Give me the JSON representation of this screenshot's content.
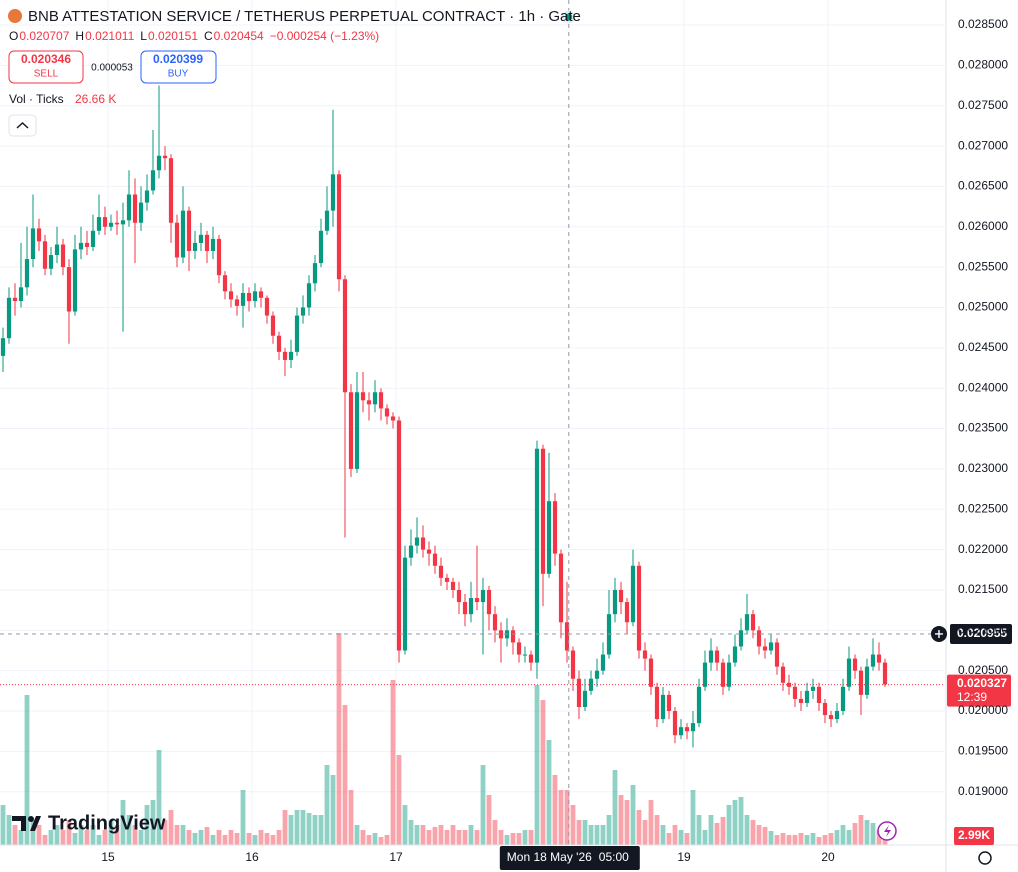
{
  "chart_data": {
    "type": "candlestick",
    "title": "BNB ATTESTATION SERVICE / TETHERUS PERPETUAL CONTRACT · 1h · Gate",
    "legend_values": [
      {
        "label": "O",
        "value": "0.020707"
      },
      {
        "label": "H",
        "value": "0.021011"
      },
      {
        "label": "L",
        "value": "0.020151"
      },
      {
        "label": "C",
        "value": "0.020454"
      }
    ],
    "change": "−0.000254 (−1.23%)",
    "sell": {
      "price": "0.020346",
      "label": "SELL"
    },
    "spread": "0.000053",
    "buy": {
      "price": "0.020399",
      "label": "BUY"
    },
    "volume_title": "Vol · Ticks",
    "volume_value": "26.66 K",
    "up_color": "#089981",
    "down_color": "#f23645",
    "ylim": [
      0.01834,
      0.02881
    ],
    "yticks": [
      {
        "value": 0.0285,
        "label": "0.028500"
      },
      {
        "value": 0.028,
        "label": "0.028000"
      },
      {
        "value": 0.0275,
        "label": "0.027500"
      },
      {
        "value": 0.027,
        "label": "0.027000"
      },
      {
        "value": 0.0265,
        "label": "0.026500"
      },
      {
        "value": 0.026,
        "label": "0.026000"
      },
      {
        "value": 0.0255,
        "label": "0.025500"
      },
      {
        "value": 0.025,
        "label": "0.025000"
      },
      {
        "value": 0.0245,
        "label": "0.024500"
      },
      {
        "value": 0.024,
        "label": "0.024000"
      },
      {
        "value": 0.0235,
        "label": "0.023500"
      },
      {
        "value": 0.023,
        "label": "0.023000"
      },
      {
        "value": 0.0225,
        "label": "0.022500"
      },
      {
        "value": 0.022,
        "label": "0.022000"
      },
      {
        "value": 0.0215,
        "label": "0.021500"
      },
      {
        "value": 0.021,
        "label": "0.021000"
      },
      {
        "value": 0.0205,
        "label": "0.020500"
      },
      {
        "value": 0.02,
        "label": "0.020000"
      },
      {
        "value": 0.0195,
        "label": "0.019500"
      },
      {
        "value": 0.019,
        "label": "0.019000"
      }
    ],
    "xlim": [
      -0.5,
      157
    ],
    "xticks": [
      {
        "value": 17.5,
        "label": "15"
      },
      {
        "value": 41.5,
        "label": "16"
      },
      {
        "value": 65.5,
        "label": "17"
      },
      {
        "value": 113.5,
        "label": "19"
      },
      {
        "value": 137.5,
        "label": "20"
      }
    ],
    "grid": true,
    "ohlc": [
      [
        0.0244,
        0.02475,
        0.0242,
        0.02462
      ],
      [
        0.02462,
        0.02525,
        0.02455,
        0.02512
      ],
      [
        0.02512,
        0.0253,
        0.0249,
        0.02508
      ],
      [
        0.02508,
        0.0258,
        0.025,
        0.02525
      ],
      [
        0.02525,
        0.026,
        0.02515,
        0.0256
      ],
      [
        0.0256,
        0.0264,
        0.0255,
        0.02598
      ],
      [
        0.02598,
        0.0261,
        0.0257,
        0.02582
      ],
      [
        0.02582,
        0.0259,
        0.0254,
        0.02548
      ],
      [
        0.02548,
        0.02575,
        0.0254,
        0.02565
      ],
      [
        0.02565,
        0.026,
        0.02555,
        0.02578
      ],
      [
        0.02578,
        0.02585,
        0.0254,
        0.0255
      ],
      [
        0.0255,
        0.0256,
        0.02455,
        0.02495
      ],
      [
        0.02495,
        0.0259,
        0.0249,
        0.02572
      ],
      [
        0.02572,
        0.026,
        0.0256,
        0.0258
      ],
      [
        0.0258,
        0.02595,
        0.02565,
        0.02575
      ],
      [
        0.02575,
        0.02615,
        0.0257,
        0.02595
      ],
      [
        0.02595,
        0.0264,
        0.0259,
        0.02612
      ],
      [
        0.02612,
        0.02625,
        0.0259,
        0.026
      ],
      [
        0.026,
        0.02615,
        0.02595,
        0.02605
      ],
      [
        0.02605,
        0.0262,
        0.0259,
        0.02603
      ],
      [
        0.02603,
        0.0263,
        0.0247,
        0.02608
      ],
      [
        0.02608,
        0.0267,
        0.026,
        0.0264
      ],
      [
        0.0264,
        0.0266,
        0.02555,
        0.02605
      ],
      [
        0.02605,
        0.0265,
        0.02595,
        0.0263
      ],
      [
        0.0263,
        0.02665,
        0.0262,
        0.02645
      ],
      [
        0.02645,
        0.0272,
        0.0264,
        0.0267
      ],
      [
        0.0267,
        0.02775,
        0.0266,
        0.02688
      ],
      [
        0.02688,
        0.027,
        0.0267,
        0.02685
      ],
      [
        0.02685,
        0.0269,
        0.0258,
        0.02605
      ],
      [
        0.02605,
        0.02615,
        0.0255,
        0.02562
      ],
      [
        0.02562,
        0.0265,
        0.02555,
        0.0262
      ],
      [
        0.0262,
        0.02625,
        0.02545,
        0.0257
      ],
      [
        0.0257,
        0.02595,
        0.0256,
        0.0258
      ],
      [
        0.0258,
        0.02605,
        0.0257,
        0.0259
      ],
      [
        0.0259,
        0.02595,
        0.02555,
        0.0257
      ],
      [
        0.0257,
        0.026,
        0.0256,
        0.02585
      ],
      [
        0.02585,
        0.0259,
        0.0253,
        0.0254
      ],
      [
        0.0254,
        0.02545,
        0.0251,
        0.0252
      ],
      [
        0.0252,
        0.0253,
        0.025,
        0.0251
      ],
      [
        0.0251,
        0.02515,
        0.0249,
        0.02502
      ],
      [
        0.02502,
        0.0253,
        0.02475,
        0.02518
      ],
      [
        0.02518,
        0.02525,
        0.02495,
        0.02508
      ],
      [
        0.02508,
        0.0253,
        0.025,
        0.0252
      ],
      [
        0.0252,
        0.02525,
        0.025,
        0.02512
      ],
      [
        0.02512,
        0.02515,
        0.0248,
        0.0249
      ],
      [
        0.0249,
        0.02495,
        0.02455,
        0.02465
      ],
      [
        0.02465,
        0.0247,
        0.02435,
        0.02445
      ],
      [
        0.02445,
        0.0245,
        0.02415,
        0.02435
      ],
      [
        0.02435,
        0.0246,
        0.02425,
        0.02445
      ],
      [
        0.02445,
        0.025,
        0.0244,
        0.0249
      ],
      [
        0.0249,
        0.02515,
        0.0248,
        0.025
      ],
      [
        0.025,
        0.0254,
        0.0249,
        0.0253
      ],
      [
        0.0253,
        0.02565,
        0.0252,
        0.02555
      ],
      [
        0.02555,
        0.0261,
        0.0255,
        0.02595
      ],
      [
        0.02595,
        0.0265,
        0.0259,
        0.0262
      ],
      [
        0.0262,
        0.02745,
        0.026,
        0.02665
      ],
      [
        0.02665,
        0.0267,
        0.0252,
        0.02535
      ],
      [
        0.02535,
        0.0254,
        0.02215,
        0.02395
      ],
      [
        0.02395,
        0.02405,
        0.0229,
        0.023
      ],
      [
        0.023,
        0.0242,
        0.02295,
        0.02395
      ],
      [
        0.02395,
        0.0242,
        0.0237,
        0.02385
      ],
      [
        0.02385,
        0.02395,
        0.0236,
        0.0238
      ],
      [
        0.0238,
        0.0241,
        0.0237,
        0.02395
      ],
      [
        0.02395,
        0.024,
        0.0236,
        0.02375
      ],
      [
        0.02375,
        0.0238,
        0.02355,
        0.02365
      ],
      [
        0.02365,
        0.0237,
        0.0235,
        0.0236
      ],
      [
        0.0236,
        0.02365,
        0.0206,
        0.02075
      ],
      [
        0.02075,
        0.02205,
        0.0207,
        0.0219
      ],
      [
        0.0219,
        0.02225,
        0.0218,
        0.02205
      ],
      [
        0.02205,
        0.0224,
        0.02195,
        0.02215
      ],
      [
        0.02215,
        0.0223,
        0.0219,
        0.022
      ],
      [
        0.022,
        0.0221,
        0.0218,
        0.02195
      ],
      [
        0.02195,
        0.02205,
        0.0217,
        0.0218
      ],
      [
        0.0218,
        0.0219,
        0.02155,
        0.02165
      ],
      [
        0.02165,
        0.0217,
        0.0215,
        0.0216
      ],
      [
        0.0216,
        0.02165,
        0.0214,
        0.0215
      ],
      [
        0.0215,
        0.0216,
        0.0212,
        0.02135
      ],
      [
        0.02135,
        0.02145,
        0.02105,
        0.0212
      ],
      [
        0.0212,
        0.0216,
        0.0211,
        0.0214
      ],
      [
        0.0214,
        0.02205,
        0.02125,
        0.02135
      ],
      [
        0.02135,
        0.02165,
        0.0207,
        0.0215
      ],
      [
        0.0215,
        0.02155,
        0.021,
        0.0212
      ],
      [
        0.0212,
        0.0213,
        0.02085,
        0.021
      ],
      [
        0.021,
        0.0211,
        0.0206,
        0.0209
      ],
      [
        0.0209,
        0.02115,
        0.0208,
        0.021
      ],
      [
        0.021,
        0.02105,
        0.0207,
        0.02085
      ],
      [
        0.02085,
        0.0209,
        0.0206,
        0.0207
      ],
      [
        0.0207,
        0.0208,
        0.0206,
        0.0207
      ],
      [
        0.0207,
        0.02075,
        0.0205,
        0.0206
      ],
      [
        0.0206,
        0.02335,
        0.0204,
        0.02325
      ],
      [
        0.02325,
        0.0233,
        0.0213,
        0.0217
      ],
      [
        0.0217,
        0.0232,
        0.02165,
        0.0226
      ],
      [
        0.0226,
        0.0227,
        0.0218,
        0.02195
      ],
      [
        0.02195,
        0.022,
        0.0209,
        0.0211
      ],
      [
        0.0211,
        0.0216,
        0.0206,
        0.02075
      ],
      [
        0.02075,
        0.0208,
        0.02025,
        0.0204
      ],
      [
        0.0204,
        0.0205,
        0.0199,
        0.02005
      ],
      [
        0.02005,
        0.0204,
        0.02,
        0.02025
      ],
      [
        0.02025,
        0.0205,
        0.0202,
        0.0204
      ],
      [
        0.0204,
        0.02065,
        0.0203,
        0.0205
      ],
      [
        0.0205,
        0.02085,
        0.02045,
        0.0207
      ],
      [
        0.0207,
        0.0215,
        0.02065,
        0.0212
      ],
      [
        0.0212,
        0.02165,
        0.0211,
        0.0215
      ],
      [
        0.0215,
        0.0216,
        0.0212,
        0.02135
      ],
      [
        0.02135,
        0.0214,
        0.02095,
        0.0211
      ],
      [
        0.0211,
        0.022,
        0.02105,
        0.0218
      ],
      [
        0.0218,
        0.02185,
        0.02065,
        0.02075
      ],
      [
        0.02075,
        0.02085,
        0.0205,
        0.02065
      ],
      [
        0.02065,
        0.0207,
        0.0202,
        0.0203
      ],
      [
        0.0203,
        0.02035,
        0.0198,
        0.0199
      ],
      [
        0.0199,
        0.0203,
        0.01985,
        0.0202
      ],
      [
        0.0202,
        0.02025,
        0.0199,
        0.02
      ],
      [
        0.02,
        0.02005,
        0.0196,
        0.0197
      ],
      [
        0.0197,
        0.0199,
        0.01965,
        0.0198
      ],
      [
        0.0198,
        0.01985,
        0.01965,
        0.01975
      ],
      [
        0.01975,
        0.02,
        0.01955,
        0.01985
      ],
      [
        0.01985,
        0.0204,
        0.0198,
        0.0203
      ],
      [
        0.0203,
        0.02075,
        0.02025,
        0.0206
      ],
      [
        0.0206,
        0.0209,
        0.0205,
        0.02075
      ],
      [
        0.02075,
        0.0208,
        0.0205,
        0.0206
      ],
      [
        0.0206,
        0.02065,
        0.0202,
        0.0203
      ],
      [
        0.0203,
        0.0207,
        0.02025,
        0.0206
      ],
      [
        0.0206,
        0.02095,
        0.02055,
        0.0208
      ],
      [
        0.0208,
        0.02115,
        0.02075,
        0.021
      ],
      [
        0.021,
        0.02145,
        0.02095,
        0.0212
      ],
      [
        0.0212,
        0.02125,
        0.0209,
        0.021
      ],
      [
        0.021,
        0.02105,
        0.0207,
        0.0208
      ],
      [
        0.0208,
        0.0209,
        0.02065,
        0.02075
      ],
      [
        0.02075,
        0.02095,
        0.0207,
        0.02085
      ],
      [
        0.02085,
        0.0209,
        0.02045,
        0.02055
      ],
      [
        0.02055,
        0.0206,
        0.02025,
        0.02035
      ],
      [
        0.02035,
        0.02045,
        0.0202,
        0.0203
      ],
      [
        0.0203,
        0.02035,
        0.02005,
        0.02015
      ],
      [
        0.02015,
        0.02025,
        0.02,
        0.0201
      ],
      [
        0.0201,
        0.02035,
        0.02005,
        0.02025
      ],
      [
        0.02025,
        0.0204,
        0.02015,
        0.0203
      ],
      [
        0.0203,
        0.02035,
        0.02,
        0.0201
      ],
      [
        0.0201,
        0.02015,
        0.01985,
        0.01995
      ],
      [
        0.01995,
        0.02,
        0.0198,
        0.0199
      ],
      [
        0.0199,
        0.0201,
        0.01985,
        0.02
      ],
      [
        0.02,
        0.0204,
        0.01995,
        0.0203
      ],
      [
        0.0203,
        0.0208,
        0.02025,
        0.02065
      ],
      [
        0.02065,
        0.0207,
        0.0204,
        0.0205
      ],
      [
        0.0205,
        0.02055,
        0.01995,
        0.0202
      ],
      [
        0.0202,
        0.02065,
        0.02015,
        0.02055
      ],
      [
        0.02055,
        0.0209,
        0.0205,
        0.0207
      ],
      [
        0.0207,
        0.02085,
        0.0205,
        0.0206
      ],
      [
        0.0206,
        0.02065,
        0.0203,
        0.02033
      ]
    ],
    "volume": [
      8000,
      6000,
      4000,
      3000,
      30000,
      5000,
      4000,
      2000,
      3000,
      4000,
      3000,
      5000,
      2400,
      4000,
      3000,
      4000,
      2000,
      3000,
      5000,
      4000,
      9000,
      6000,
      4000,
      3000,
      8000,
      9000,
      19000,
      5000,
      7000,
      4000,
      4000,
      3000,
      2400,
      3000,
      3600,
      2000,
      3000,
      2000,
      3000,
      2400,
      11000,
      2400,
      2000,
      3000,
      2400,
      2000,
      3000,
      7000,
      6000,
      7000,
      7000,
      6400,
      6000,
      6000,
      16000,
      14000,
      42400,
      28000,
      11000,
      4000,
      3000,
      2000,
      2400,
      1600,
      2000,
      33000,
      18000,
      8000,
      5000,
      4000,
      4000,
      3000,
      3600,
      4000,
      3000,
      4000,
      3000,
      3000,
      4000,
      3000,
      16000,
      10000,
      5000,
      3000,
      2000,
      2400,
      2400,
      3000,
      3000,
      32000,
      29000,
      21000,
      14000,
      11000,
      11000,
      8000,
      5000,
      5000,
      4000,
      4000,
      4000,
      6000,
      15000,
      10000,
      9000,
      12000,
      7000,
      5000,
      9000,
      6000,
      4000,
      2400,
      4000,
      3000,
      2400,
      11000,
      6000,
      3000,
      6000,
      4400,
      5600,
      8000,
      9000,
      9600,
      6000,
      5000,
      4000,
      3600,
      2800,
      2000,
      2400,
      2000,
      2000,
      2400,
      2000,
      2400,
      1600,
      2000,
      2400,
      3000,
      4000,
      3000,
      4400,
      6000,
      5000,
      4400,
      3000,
      2990
    ],
    "volume_ylim": [
      0,
      44000
    ],
    "last_volume_label": "2.99K",
    "crosshair": {
      "x": 94.3,
      "x_label": "Mon 18 May '26",
      "x_time": "05:00",
      "y": {
        "value": 0.020955,
        "label": "0.020955"
      }
    },
    "last_price": {
      "value": 0.020327,
      "label": "0.020327",
      "countdown": "12:39"
    },
    "watermark": "TradingView"
  }
}
